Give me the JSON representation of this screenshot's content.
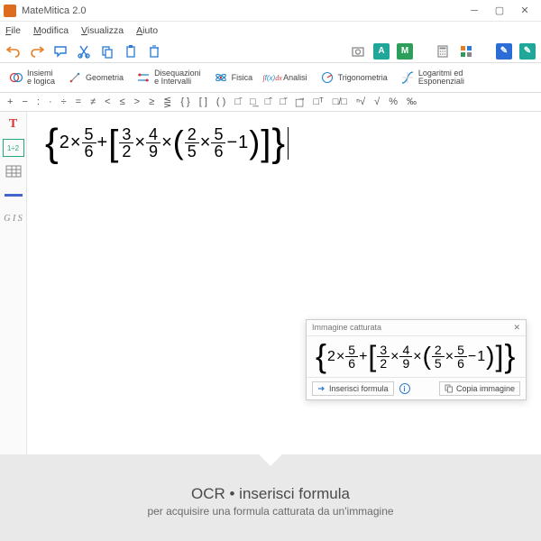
{
  "window": {
    "title": "MateMitica 2.0"
  },
  "menu": {
    "file": "File",
    "modifica": "Modifica",
    "visualizza": "Visualizza",
    "aiuto": "Aiuto"
  },
  "colors": {
    "accent_orange": "#e67e22",
    "accent_blue": "#2b7bd6",
    "accent_teal": "#1fa89a",
    "accent_green": "#2ecc71",
    "badge_m": "#2e9e5b",
    "badge_blue": "#2b6cd6",
    "badge_grey": "#888888"
  },
  "categories": {
    "insiemi": "Insiemi\ne logica",
    "geometria": "Geometria",
    "disequazioni": "Disequazioni\ne Intervalli",
    "fisica": "Fisica",
    "analisi": "Analisi",
    "trigonometria": "Trigonometria",
    "logaritmi": "Logaritmi ed\nEsponenziali"
  },
  "symbol_row": [
    "+",
    "−",
    ":",
    "·",
    "÷",
    "=",
    "≠",
    "<",
    "≤",
    ">",
    "≥",
    "⋚",
    "{ }",
    "[ ]",
    "( )",
    "□̄",
    "□̲",
    "□̂",
    "□̌",
    "□⃗",
    "□ᵀ",
    "□/□",
    "ⁿ√",
    "√",
    "%",
    "‰"
  ],
  "side_tools": {
    "ratio": "1÷2",
    "gis": "G I S"
  },
  "formula": {
    "a": "2",
    "f1n": "5",
    "f1d": "6",
    "f2n": "3",
    "f2d": "2",
    "f3n": "4",
    "f3d": "9",
    "f4n": "2",
    "f4d": "5",
    "f5n": "5",
    "f5d": "6",
    "minus1": "1"
  },
  "popup": {
    "title": "Immagine catturata",
    "insert": "Inserisci formula",
    "copy": "Copia immagine"
  },
  "caption": {
    "title": "OCR • inserisci formula",
    "sub": "per acquisire una formula catturata da un'immagine"
  }
}
